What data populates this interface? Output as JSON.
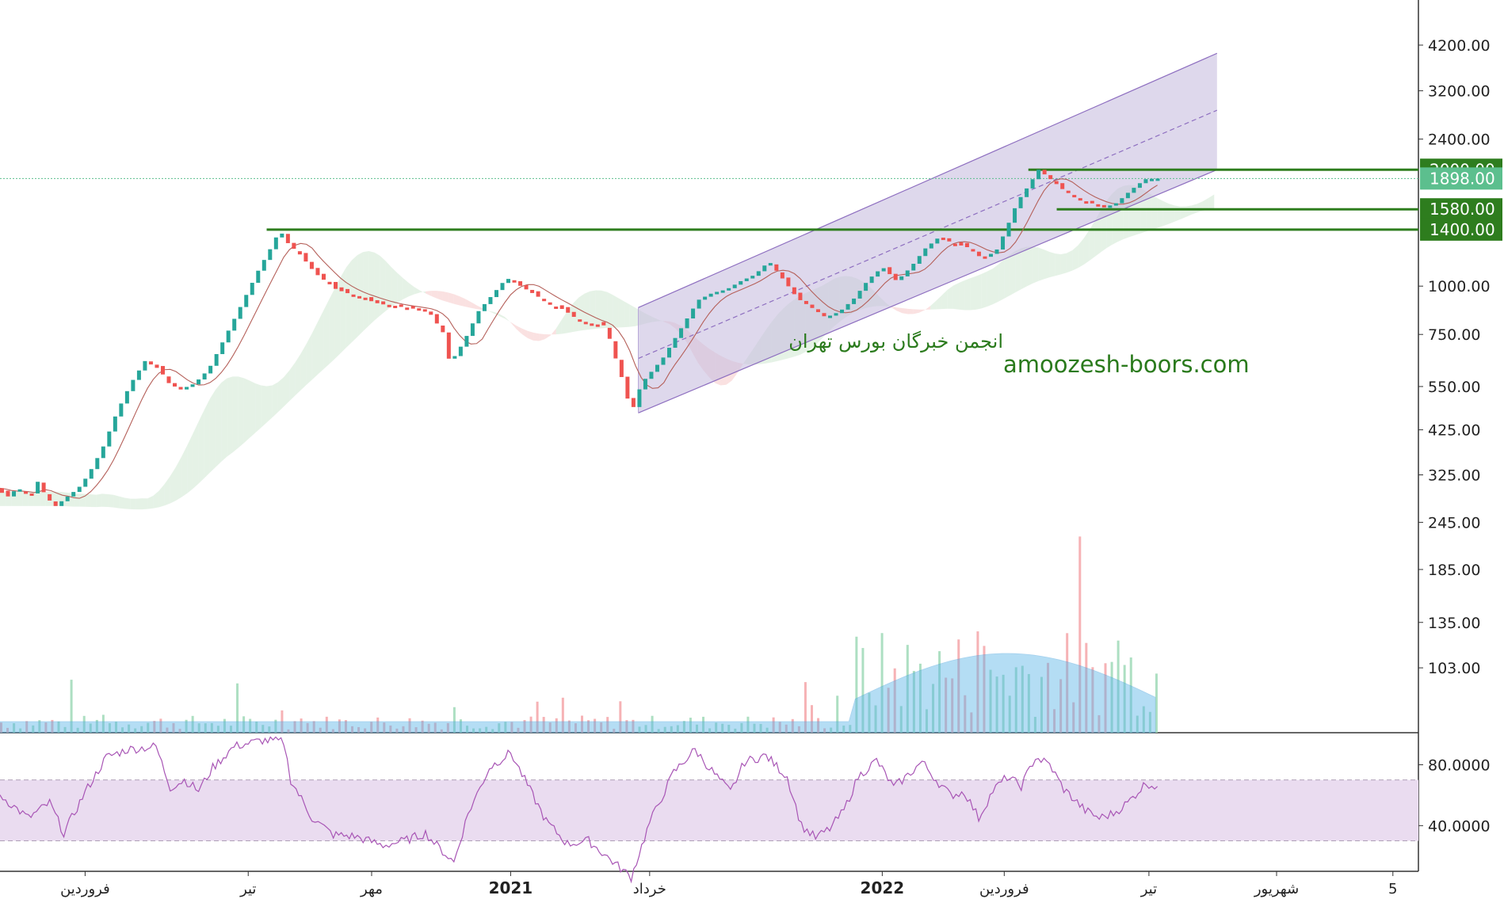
{
  "chart_data": [
    {
      "type": "candlestick",
      "scale": "log",
      "price_axis": {
        "ticks": [
          "4200.00",
          "3200.00",
          "2400.00",
          "1000.00",
          "750.00",
          "550.00",
          "425.00",
          "325.00",
          "245.00",
          "185.00",
          "135.00",
          "103.00"
        ],
        "tick_values": [
          4200,
          3200,
          2400,
          1000,
          750,
          550,
          425,
          325,
          245,
          185,
          135,
          103
        ],
        "ylim": [
          70,
          5000
        ]
      },
      "price_badges": [
        {
          "label": "2000.00",
          "value": 2000,
          "color": "#2e7d1e"
        },
        {
          "label": "1898.00",
          "value": 1898,
          "color": "#5cbf8e"
        },
        {
          "label": "1580.00",
          "value": 1580,
          "color": "#2e7d1e"
        },
        {
          "label": "1400.00",
          "value": 1400,
          "color": "#2e7d1e"
        }
      ],
      "last_price": 1898,
      "horizontal_levels": [
        {
          "value": 2000,
          "from": 0.725,
          "color": "#2e7d1e"
        },
        {
          "value": 1580,
          "from": 0.745,
          "color": "#2e7d1e"
        },
        {
          "value": 1400,
          "from": 0.188,
          "color": "#2e7d1e"
        }
      ],
      "time_axis": {
        "labels": [
          "فروردین",
          "تیر",
          "مهر",
          "2021",
          "خرداد",
          "2022",
          "فروردین",
          "تیر",
          "شهریور",
          "5"
        ],
        "bold": [
          false,
          false,
          false,
          true,
          false,
          true,
          false,
          false,
          false,
          false
        ],
        "positions": [
          0.06,
          0.175,
          0.262,
          0.36,
          0.458,
          0.622,
          0.708,
          0.81,
          0.9,
          0.982
        ]
      },
      "path_points": [
        [
          0,
          300
        ],
        [
          0.008,
          285
        ],
        [
          0.015,
          300
        ],
        [
          0.025,
          290
        ],
        [
          0.03,
          315
        ],
        [
          0.035,
          285
        ],
        [
          0.042,
          270
        ],
        [
          0.05,
          285
        ],
        [
          0.058,
          300
        ],
        [
          0.065,
          325
        ],
        [
          0.075,
          380
        ],
        [
          0.085,
          470
        ],
        [
          0.095,
          560
        ],
        [
          0.105,
          640
        ],
        [
          0.115,
          610
        ],
        [
          0.122,
          560
        ],
        [
          0.13,
          540
        ],
        [
          0.14,
          560
        ],
        [
          0.15,
          610
        ],
        [
          0.16,
          720
        ],
        [
          0.172,
          880
        ],
        [
          0.185,
          1100
        ],
        [
          0.195,
          1280
        ],
        [
          0.2,
          1400
        ],
        [
          0.205,
          1300
        ],
        [
          0.215,
          1200
        ],
        [
          0.225,
          1080
        ],
        [
          0.24,
          980
        ],
        [
          0.255,
          940
        ],
        [
          0.27,
          900
        ],
        [
          0.29,
          880
        ],
        [
          0.305,
          860
        ],
        [
          0.315,
          760
        ],
        [
          0.32,
          630
        ],
        [
          0.33,
          720
        ],
        [
          0.34,
          860
        ],
        [
          0.35,
          950
        ],
        [
          0.36,
          1050
        ],
        [
          0.37,
          1000
        ],
        [
          0.38,
          950
        ],
        [
          0.39,
          900
        ],
        [
          0.4,
          870
        ],
        [
          0.41,
          820
        ],
        [
          0.42,
          800
        ],
        [
          0.43,
          790
        ],
        [
          0.435,
          680
        ],
        [
          0.44,
          600
        ],
        [
          0.448,
          470
        ],
        [
          0.455,
          560
        ],
        [
          0.47,
          650
        ],
        [
          0.485,
          800
        ],
        [
          0.495,
          920
        ],
        [
          0.505,
          960
        ],
        [
          0.515,
          980
        ],
        [
          0.525,
          1030
        ],
        [
          0.535,
          1070
        ],
        [
          0.545,
          1160
        ],
        [
          0.555,
          1040
        ],
        [
          0.565,
          930
        ],
        [
          0.575,
          880
        ],
        [
          0.585,
          830
        ],
        [
          0.595,
          860
        ],
        [
          0.605,
          930
        ],
        [
          0.615,
          1040
        ],
        [
          0.625,
          1120
        ],
        [
          0.635,
          1030
        ],
        [
          0.645,
          1120
        ],
        [
          0.655,
          1250
        ],
        [
          0.665,
          1340
        ],
        [
          0.675,
          1290
        ],
        [
          0.685,
          1260
        ],
        [
          0.695,
          1180
        ],
        [
          0.705,
          1230
        ],
        [
          0.712,
          1400
        ],
        [
          0.72,
          1650
        ],
        [
          0.728,
          1820
        ],
        [
          0.735,
          2000
        ],
        [
          0.742,
          1910
        ],
        [
          0.752,
          1780
        ],
        [
          0.762,
          1690
        ],
        [
          0.772,
          1640
        ],
        [
          0.782,
          1600
        ],
        [
          0.79,
          1640
        ],
        [
          0.8,
          1770
        ],
        [
          0.81,
          1890
        ],
        [
          0.818,
          1898
        ]
      ],
      "channel": {
        "upper": [
          [
            0.45,
            880
          ],
          [
            0.858,
            4000
          ]
        ],
        "lower": [
          [
            0.45,
            470
          ],
          [
            0.858,
            2000
          ]
        ],
        "mid": [
          [
            0.45,
            650
          ],
          [
            0.858,
            2850
          ]
        ],
        "fill": "#c8bedf"
      },
      "volume_area_color": "#5ab4e8",
      "rsi": {
        "levels": [
          70,
          30
        ],
        "tick_labels": [
          "80.0000",
          "40.0000"
        ],
        "tick_values": [
          80,
          40
        ],
        "ylim": [
          10,
          100
        ],
        "values": [
          [
            0,
            60
          ],
          [
            0.02,
            45
          ],
          [
            0.035,
            55
          ],
          [
            0.045,
            35
          ],
          [
            0.06,
            62
          ],
          [
            0.075,
            85
          ],
          [
            0.09,
            90
          ],
          [
            0.11,
            92
          ],
          [
            0.12,
            65
          ],
          [
            0.13,
            70
          ],
          [
            0.14,
            63
          ],
          [
            0.15,
            78
          ],
          [
            0.165,
            92
          ],
          [
            0.185,
            96
          ],
          [
            0.2,
            95
          ],
          [
            0.205,
            70
          ],
          [
            0.22,
            45
          ],
          [
            0.235,
            34
          ],
          [
            0.25,
            33
          ],
          [
            0.27,
            27
          ],
          [
            0.285,
            30
          ],
          [
            0.3,
            35
          ],
          [
            0.31,
            25
          ],
          [
            0.32,
            16
          ],
          [
            0.33,
            48
          ],
          [
            0.345,
            78
          ],
          [
            0.36,
            88
          ],
          [
            0.37,
            70
          ],
          [
            0.385,
            43
          ],
          [
            0.4,
            28
          ],
          [
            0.415,
            30
          ],
          [
            0.43,
            18
          ],
          [
            0.445,
            6
          ],
          [
            0.458,
            42
          ],
          [
            0.475,
            75
          ],
          [
            0.49,
            90
          ],
          [
            0.5,
            78
          ],
          [
            0.515,
            62
          ],
          [
            0.525,
            82
          ],
          [
            0.54,
            86
          ],
          [
            0.555,
            72
          ],
          [
            0.565,
            40
          ],
          [
            0.575,
            32
          ],
          [
            0.585,
            38
          ],
          [
            0.595,
            50
          ],
          [
            0.605,
            72
          ],
          [
            0.618,
            83
          ],
          [
            0.63,
            65
          ],
          [
            0.64,
            73
          ],
          [
            0.65,
            82
          ],
          [
            0.66,
            70
          ],
          [
            0.67,
            60
          ],
          [
            0.68,
            62
          ],
          [
            0.69,
            45
          ],
          [
            0.7,
            63
          ],
          [
            0.71,
            72
          ],
          [
            0.72,
            66
          ],
          [
            0.73,
            85
          ],
          [
            0.74,
            80
          ],
          [
            0.75,
            64
          ],
          [
            0.765,
            50
          ],
          [
            0.775,
            45
          ],
          [
            0.785,
            48
          ],
          [
            0.795,
            55
          ],
          [
            0.808,
            68
          ],
          [
            0.818,
            65
          ]
        ]
      },
      "annotations": [
        "انجمن خبرگان بورس تهران",
        "amoozesh-boors.com"
      ],
      "colors": {
        "up": "#26a69a",
        "down": "#ef5350",
        "tenkan": "#b5605a",
        "rsi_line": "#a855b5",
        "rsi_band": "#eadcf0"
      }
    }
  ]
}
